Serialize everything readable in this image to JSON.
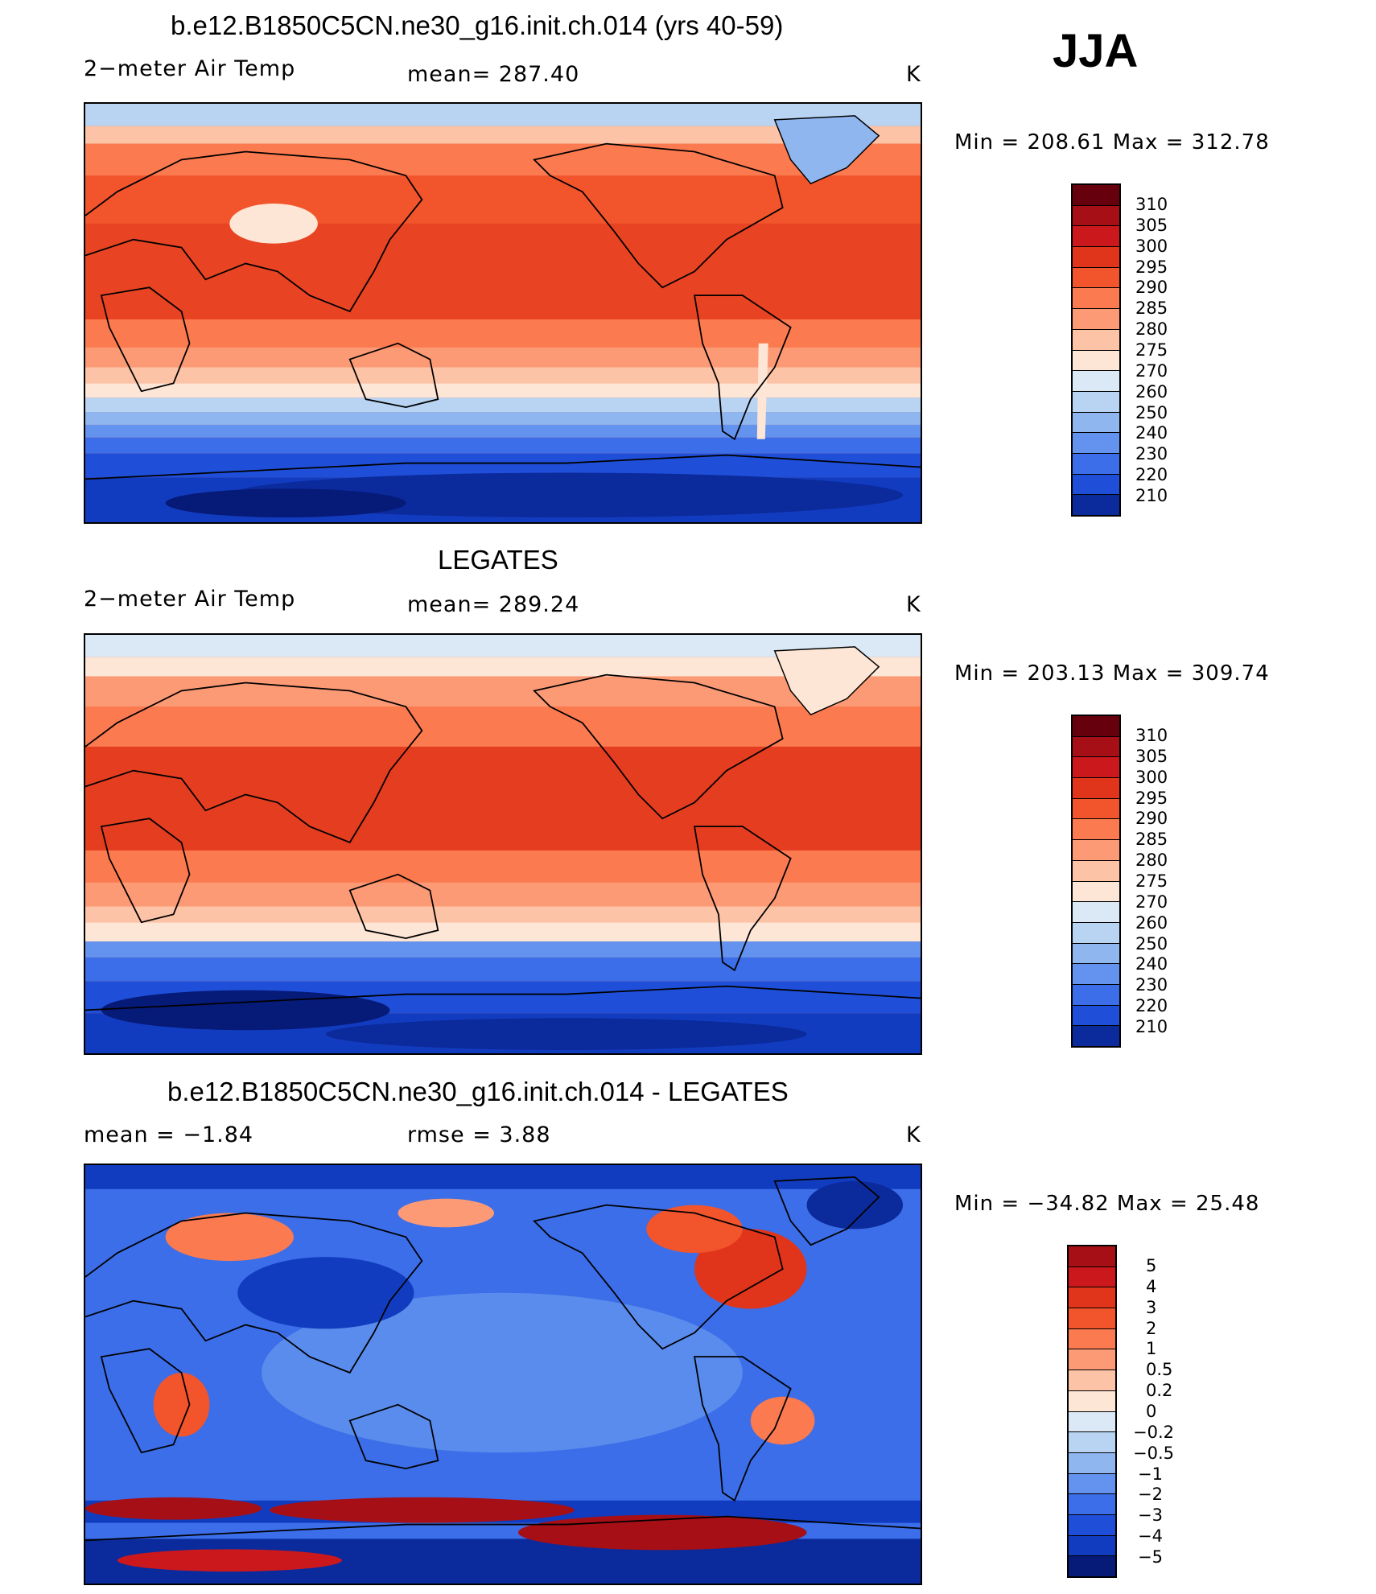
{
  "season": "JJA",
  "panels": [
    {
      "title": "b.e12.B1850C5CN.ne30_g16.init.ch.014 (yrs 40-59)",
      "left_label": "2−meter Air Temp",
      "center_label": "mean=  287.40",
      "units": "K",
      "minmax": "Min  =  208.61  Max  =  312.78",
      "colorbar_labels": [
        "310",
        "305",
        "300",
        "295",
        "290",
        "285",
        "280",
        "275",
        "270",
        "260",
        "250",
        "240",
        "230",
        "220",
        "210"
      ]
    },
    {
      "title": "LEGATES",
      "left_label": "2−meter Air Temp",
      "center_label": "mean=  289.24",
      "units": "K",
      "minmax": "Min  =  203.13  Max  =  309.74",
      "colorbar_labels": [
        "310",
        "305",
        "300",
        "295",
        "290",
        "285",
        "280",
        "275",
        "270",
        "260",
        "250",
        "240",
        "230",
        "220",
        "210"
      ]
    },
    {
      "title": "b.e12.B1850C5CN.ne30_g16.init.ch.014 - LEGATES",
      "left_label": "mean  =   −1.84",
      "center_label": "rmse  =     3.88",
      "units": "K",
      "minmax": "Min  =  −34.82  Max  =    25.48",
      "colorbar_labels": [
        "5",
        "4",
        "3",
        "2",
        "1",
        "0.5",
        "0.2",
        "0",
        "−0.2",
        "−0.5",
        "−1",
        "−2",
        "−3",
        "−4",
        "−5"
      ]
    }
  ],
  "colors": {
    "scale": [
      "#67000d",
      "#a50f15",
      "#cb181d",
      "#e0351b",
      "#f2542c",
      "#fb7a4f",
      "#fc9a76",
      "#fdc3a6",
      "#fee6d6",
      "#dbe9f6",
      "#b9d4f2",
      "#8fb6ef",
      "#6393ee",
      "#3b6ee8",
      "#1f4fd9",
      "#123cbf",
      "#0b2a9c",
      "#061a78"
    ]
  }
}
